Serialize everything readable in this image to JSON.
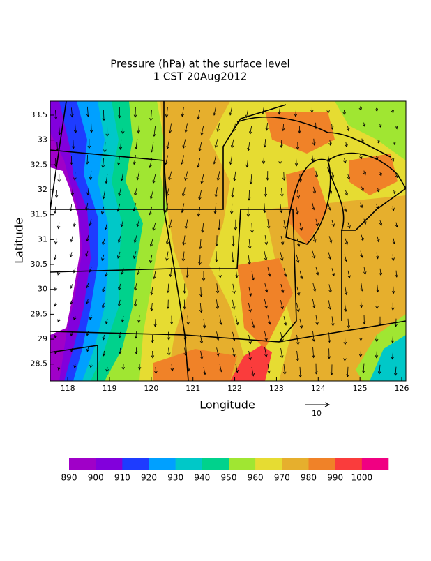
{
  "title": "Pressure (hPa) at the surface level",
  "subtitle": "1 CST 20Aug2012",
  "xlabel": "Longitude",
  "ylabel": "Latitude",
  "xlim": [
    117.58,
    126.1
  ],
  "ylim": [
    28.16,
    33.78
  ],
  "xticks": [
    118,
    119,
    120,
    121,
    122,
    123,
    124,
    125,
    126
  ],
  "yticks": [
    28.5,
    29,
    29.5,
    30,
    30.5,
    31,
    31.5,
    32,
    32.5,
    33,
    33.5
  ],
  "colorbar": {
    "levels": [
      890,
      900,
      910,
      920,
      930,
      940,
      950,
      960,
      970,
      980,
      990,
      1000
    ],
    "colors": [
      "#a000c8",
      "#8200dc",
      "#1e3cff",
      "#00a0ff",
      "#00c8c8",
      "#00d28c",
      "#a0e632",
      "#e6dc32",
      "#e6af2d",
      "#f08228",
      "#fa3c3c",
      "#f00082"
    ]
  },
  "vector_reference": 10
}
